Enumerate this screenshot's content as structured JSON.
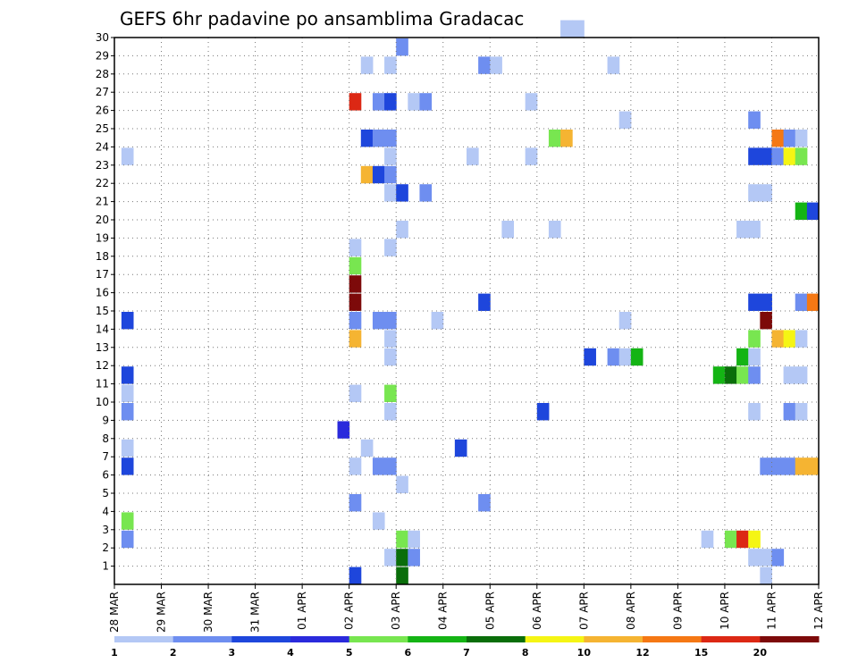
{
  "chart_data": {
    "type": "heatmap",
    "title": "GEFS 6hr padavine po ansamblima Gradacac",
    "xlabel": "",
    "ylabel": "",
    "x_tick_labels": [
      "28 MAR",
      "29 MAR",
      "30 MAR",
      "31 MAR",
      "01 APR",
      "02 APR",
      "03 APR",
      "04 APR",
      "05 APR",
      "06 APR",
      "07 APR",
      "08 APR",
      "09 APR",
      "10 APR",
      "11 APR",
      "12 APR"
    ],
    "xlim": [
      0,
      15
    ],
    "y_tick_labels": [
      "1",
      "2",
      "3",
      "4",
      "5",
      "6",
      "7",
      "8",
      "9",
      "10",
      "11",
      "12",
      "13",
      "14",
      "15",
      "16",
      "17",
      "18",
      "19",
      "20",
      "21",
      "22",
      "23",
      "24",
      "25",
      "26",
      "27",
      "28",
      "29",
      "30"
    ],
    "ylim": [
      0,
      30
    ],
    "grid": true,
    "legend_position": "bottom",
    "color_scale": {
      "labels": [
        "1",
        "2",
        "3",
        "4",
        "5",
        "6",
        "7",
        "8",
        "10",
        "12",
        "15",
        "20"
      ],
      "colors": [
        "#b4c8f5",
        "#6e8ef0",
        "#1e46dc",
        "#2a2adc",
        "#78e650",
        "#14b414",
        "#0a6e0a",
        "#f5f514",
        "#f5b432",
        "#f57814",
        "#dc2814",
        "#7d0a0a"
      ]
    },
    "cells": [
      {
        "x": 0.15,
        "y": 23,
        "v": 1
      },
      {
        "x": 0.15,
        "y": 14,
        "v": 3
      },
      {
        "x": 0.15,
        "y": 11,
        "v": 3
      },
      {
        "x": 0.15,
        "y": 10,
        "v": 1
      },
      {
        "x": 0.15,
        "y": 9,
        "v": 2
      },
      {
        "x": 0.15,
        "y": 7,
        "v": 1
      },
      {
        "x": 0.15,
        "y": 6,
        "v": 3
      },
      {
        "x": 0.15,
        "y": 3,
        "v": 5
      },
      {
        "x": 0.15,
        "y": 2,
        "v": 2
      },
      {
        "x": 4.75,
        "y": 8,
        "v": 4
      },
      {
        "x": 5.0,
        "y": 26,
        "v": 15
      },
      {
        "x": 5.0,
        "y": 18,
        "v": 1
      },
      {
        "x": 5.0,
        "y": 17,
        "v": 5
      },
      {
        "x": 5.0,
        "y": 16,
        "v": 20
      },
      {
        "x": 5.0,
        "y": 15,
        "v": 20
      },
      {
        "x": 5.0,
        "y": 14,
        "v": 2
      },
      {
        "x": 5.0,
        "y": 13,
        "v": 10
      },
      {
        "x": 5.0,
        "y": 10,
        "v": 1
      },
      {
        "x": 5.0,
        "y": 6,
        "v": 1
      },
      {
        "x": 5.0,
        "y": 4,
        "v": 2
      },
      {
        "x": 5.0,
        "y": 0,
        "v": 3
      },
      {
        "x": 5.25,
        "y": 28,
        "v": 1
      },
      {
        "x": 5.25,
        "y": 24,
        "v": 3
      },
      {
        "x": 5.25,
        "y": 22,
        "v": 10
      },
      {
        "x": 5.25,
        "y": 7,
        "v": 1
      },
      {
        "x": 5.5,
        "y": 26,
        "v": 2
      },
      {
        "x": 5.5,
        "y": 24,
        "v": 2
      },
      {
        "x": 5.5,
        "y": 22,
        "v": 3
      },
      {
        "x": 5.5,
        "y": 14,
        "v": 2
      },
      {
        "x": 5.5,
        "y": 6,
        "v": 2
      },
      {
        "x": 5.5,
        "y": 3,
        "v": 1
      },
      {
        "x": 5.75,
        "y": 28,
        "v": 1
      },
      {
        "x": 5.75,
        "y": 26,
        "v": 3
      },
      {
        "x": 5.75,
        "y": 24,
        "v": 2
      },
      {
        "x": 5.75,
        "y": 23,
        "v": 1
      },
      {
        "x": 5.75,
        "y": 22,
        "v": 2
      },
      {
        "x": 5.75,
        "y": 21,
        "v": 1
      },
      {
        "x": 5.75,
        "y": 18,
        "v": 1
      },
      {
        "x": 5.75,
        "y": 14,
        "v": 2
      },
      {
        "x": 5.75,
        "y": 13,
        "v": 1
      },
      {
        "x": 5.75,
        "y": 12,
        "v": 1
      },
      {
        "x": 5.75,
        "y": 10,
        "v": 5
      },
      {
        "x": 5.75,
        "y": 9,
        "v": 1
      },
      {
        "x": 5.75,
        "y": 6,
        "v": 2
      },
      {
        "x": 5.75,
        "y": 1,
        "v": 1
      },
      {
        "x": 6.0,
        "y": 29,
        "v": 2
      },
      {
        "x": 6.0,
        "y": 21,
        "v": 3
      },
      {
        "x": 6.0,
        "y": 19,
        "v": 1
      },
      {
        "x": 6.0,
        "y": 5,
        "v": 1
      },
      {
        "x": 6.0,
        "y": 2,
        "v": 5
      },
      {
        "x": 6.0,
        "y": 1,
        "v": 7
      },
      {
        "x": 6.0,
        "y": 0,
        "v": 7
      },
      {
        "x": 6.25,
        "y": 26,
        "v": 1
      },
      {
        "x": 6.25,
        "y": 2,
        "v": 1
      },
      {
        "x": 6.25,
        "y": 1,
        "v": 2
      },
      {
        "x": 6.5,
        "y": 26,
        "v": 2
      },
      {
        "x": 6.5,
        "y": 21,
        "v": 2
      },
      {
        "x": 6.75,
        "y": 14,
        "v": 1
      },
      {
        "x": 7.25,
        "y": 7,
        "v": 3
      },
      {
        "x": 7.5,
        "y": 23,
        "v": 1
      },
      {
        "x": 7.75,
        "y": 28,
        "v": 2
      },
      {
        "x": 7.75,
        "y": 15,
        "v": 3
      },
      {
        "x": 7.75,
        "y": 4,
        "v": 2
      },
      {
        "x": 8.0,
        "y": 28,
        "v": 1
      },
      {
        "x": 8.25,
        "y": 19,
        "v": 1
      },
      {
        "x": 8.75,
        "y": 26,
        "v": 1
      },
      {
        "x": 8.75,
        "y": 23,
        "v": 1
      },
      {
        "x": 9.0,
        "y": 9,
        "v": 3
      },
      {
        "x": 9.25,
        "y": 24,
        "v": 5
      },
      {
        "x": 9.25,
        "y": 19,
        "v": 1
      },
      {
        "x": 9.5,
        "y": 24,
        "v": 10
      },
      {
        "x": 9.5,
        "y": 30,
        "v": 1
      },
      {
        "x": 9.75,
        "y": 30,
        "v": 1
      },
      {
        "x": 10.0,
        "y": 12,
        "v": 3
      },
      {
        "x": 10.5,
        "y": 28,
        "v": 1
      },
      {
        "x": 10.5,
        "y": 12,
        "v": 2
      },
      {
        "x": 10.75,
        "y": 25,
        "v": 1
      },
      {
        "x": 10.75,
        "y": 12,
        "v": 1
      },
      {
        "x": 10.75,
        "y": 14,
        "v": 1
      },
      {
        "x": 11.0,
        "y": 12,
        "v": 6
      },
      {
        "x": 12.5,
        "y": 2,
        "v": 1
      },
      {
        "x": 12.75,
        "y": 11,
        "v": 6
      },
      {
        "x": 13.0,
        "y": 11,
        "v": 7
      },
      {
        "x": 13.0,
        "y": 2,
        "v": 5
      },
      {
        "x": 13.25,
        "y": 19,
        "v": 1
      },
      {
        "x": 13.25,
        "y": 12,
        "v": 6
      },
      {
        "x": 13.25,
        "y": 11,
        "v": 5
      },
      {
        "x": 13.25,
        "y": 2,
        "v": 15
      },
      {
        "x": 13.5,
        "y": 25,
        "v": 2
      },
      {
        "x": 13.5,
        "y": 23,
        "v": 3
      },
      {
        "x": 13.5,
        "y": 21,
        "v": 1
      },
      {
        "x": 13.5,
        "y": 19,
        "v": 1
      },
      {
        "x": 13.5,
        "y": 15,
        "v": 3
      },
      {
        "x": 13.5,
        "y": 13,
        "v": 5
      },
      {
        "x": 13.5,
        "y": 12,
        "v": 1
      },
      {
        "x": 13.5,
        "y": 11,
        "v": 2
      },
      {
        "x": 13.5,
        "y": 9,
        "v": 1
      },
      {
        "x": 13.5,
        "y": 2,
        "v": 8
      },
      {
        "x": 13.5,
        "y": 1,
        "v": 1
      },
      {
        "x": 13.75,
        "y": 23,
        "v": 3
      },
      {
        "x": 13.75,
        "y": 21,
        "v": 1
      },
      {
        "x": 13.75,
        "y": 15,
        "v": 3
      },
      {
        "x": 13.75,
        "y": 14,
        "v": 20
      },
      {
        "x": 13.75,
        "y": 6,
        "v": 2
      },
      {
        "x": 13.75,
        "y": 1,
        "v": 1
      },
      {
        "x": 13.75,
        "y": 0,
        "v": 1
      },
      {
        "x": 14.0,
        "y": 24,
        "v": 12
      },
      {
        "x": 14.0,
        "y": 23,
        "v": 2
      },
      {
        "x": 14.0,
        "y": 13,
        "v": 10
      },
      {
        "x": 14.0,
        "y": 6,
        "v": 2
      },
      {
        "x": 14.0,
        "y": 1,
        "v": 2
      },
      {
        "x": 14.25,
        "y": 24,
        "v": 2
      },
      {
        "x": 14.25,
        "y": 23,
        "v": 8
      },
      {
        "x": 14.25,
        "y": 13,
        "v": 8
      },
      {
        "x": 14.25,
        "y": 11,
        "v": 1
      },
      {
        "x": 14.25,
        "y": 9,
        "v": 2
      },
      {
        "x": 14.25,
        "y": 6,
        "v": 2
      },
      {
        "x": 14.5,
        "y": 24,
        "v": 1
      },
      {
        "x": 14.5,
        "y": 23,
        "v": 5
      },
      {
        "x": 14.5,
        "y": 20,
        "v": 6
      },
      {
        "x": 14.5,
        "y": 15,
        "v": 2
      },
      {
        "x": 14.5,
        "y": 13,
        "v": 1
      },
      {
        "x": 14.5,
        "y": 11,
        "v": 1
      },
      {
        "x": 14.5,
        "y": 9,
        "v": 1
      },
      {
        "x": 14.5,
        "y": 6,
        "v": 10
      },
      {
        "x": 14.75,
        "y": 20,
        "v": 3
      },
      {
        "x": 14.75,
        "y": 15,
        "v": 12
      },
      {
        "x": 14.75,
        "y": 6,
        "v": 10
      }
    ]
  }
}
